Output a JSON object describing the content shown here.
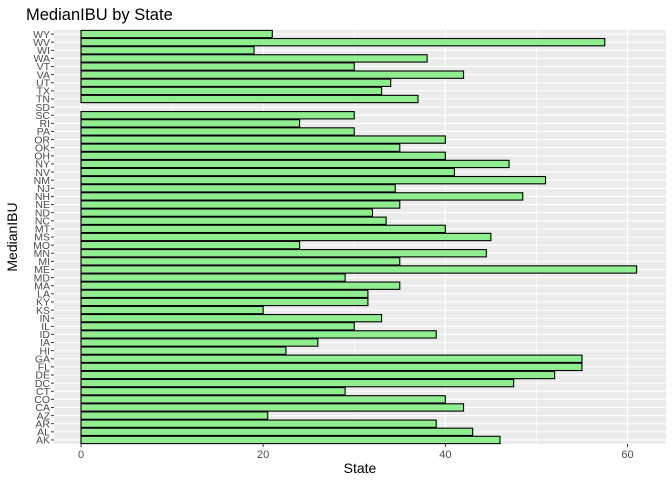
{
  "chart_data": {
    "type": "bar",
    "orientation": "horizontal",
    "title": "MedianIBU by State",
    "xlabel": "State",
    "ylabel": "MedianIBU",
    "xlim": [
      0,
      64
    ],
    "x_ticks": [
      0,
      20,
      40,
      60
    ],
    "grid": true,
    "legend": "none",
    "bar_fill": "#90ee90",
    "bar_outline": "#000000",
    "panel_background": "#ebebeb",
    "categories": [
      "AK",
      "AL",
      "AR",
      "AZ",
      "CA",
      "CO",
      "CT",
      "DC",
      "DE",
      "FL",
      "GA",
      "HI",
      "IA",
      "ID",
      "IL",
      "IN",
      "KS",
      "KY",
      "LA",
      "MA",
      "MD",
      "ME",
      "MI",
      "MN",
      "MO",
      "MS",
      "MT",
      "NC",
      "ND",
      "NE",
      "NH",
      "NJ",
      "NM",
      "NV",
      "NY",
      "OH",
      "OK",
      "OR",
      "PA",
      "RI",
      "SC",
      "SD",
      "TN",
      "TX",
      "UT",
      "VA",
      "VT",
      "WA",
      "WI",
      "WV",
      "WY"
    ],
    "values": [
      46,
      43,
      39,
      20.5,
      42,
      40,
      29,
      47.5,
      52,
      55,
      55,
      22.5,
      26,
      39,
      30,
      33,
      20,
      31.5,
      31.5,
      35,
      29,
      61,
      35,
      44.5,
      24,
      45,
      40,
      33.5,
      32,
      35,
      48.5,
      34.5,
      51,
      41,
      47,
      40,
      35,
      40,
      30,
      24,
      30,
      null,
      37,
      33,
      34,
      42,
      30,
      38,
      19,
      57.5,
      21
    ]
  }
}
